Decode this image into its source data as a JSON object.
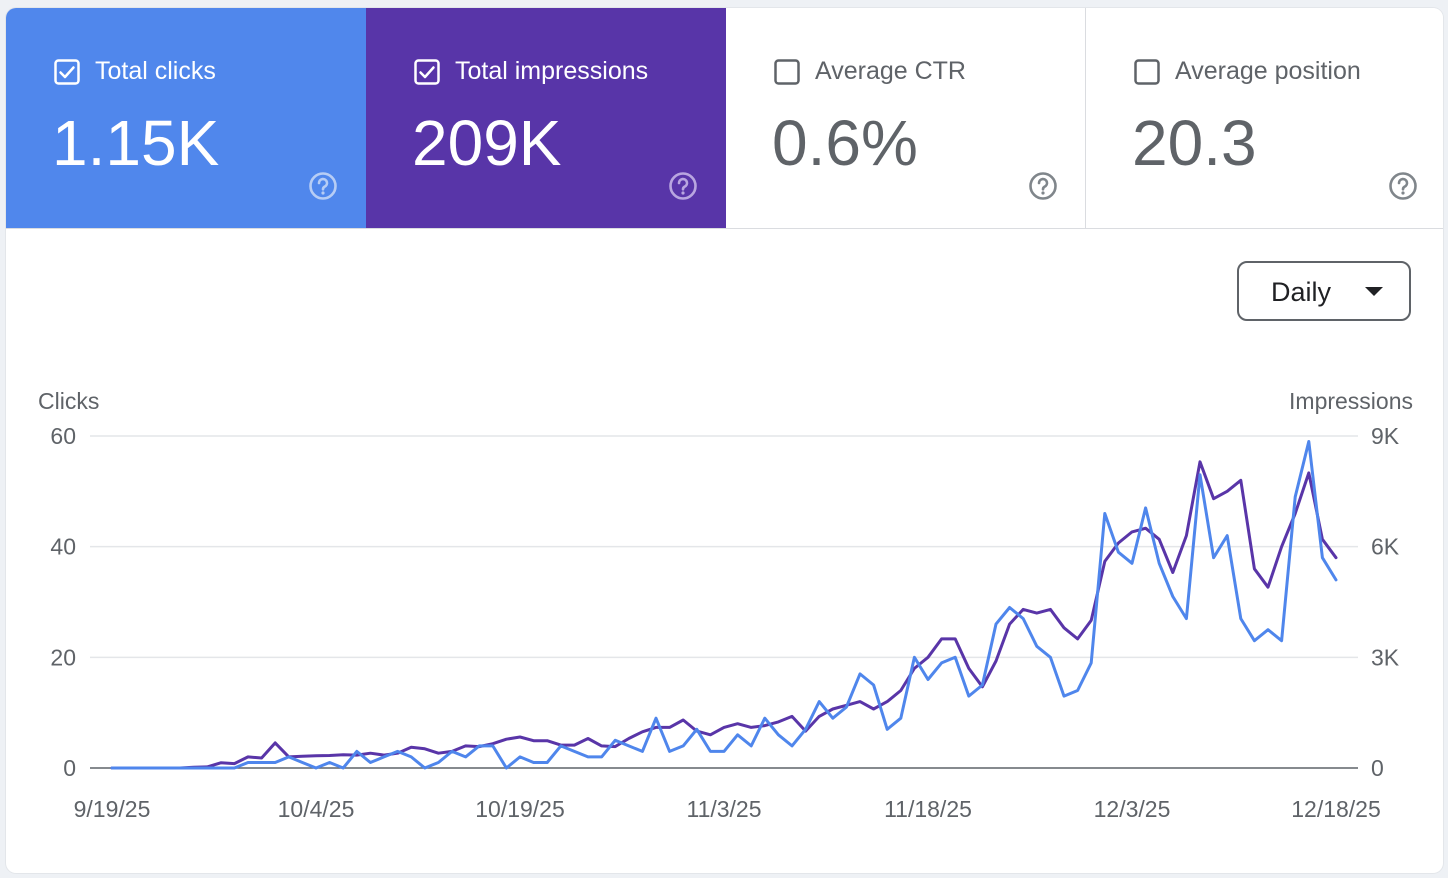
{
  "metrics": [
    {
      "label": "Total clicks",
      "value": "1.15K",
      "checked": true,
      "bg": "#5087ec"
    },
    {
      "label": "Total impressions",
      "value": "209K",
      "checked": true,
      "bg": "#5835a8"
    },
    {
      "label": "Average CTR",
      "value": "0.6%",
      "checked": false,
      "bg": "#ffffff"
    },
    {
      "label": "Average position",
      "value": "20.3",
      "checked": false,
      "bg": "#ffffff"
    }
  ],
  "granularity": {
    "selected": "Daily"
  },
  "chart_data": {
    "type": "line",
    "left_axis": {
      "label": "Clicks",
      "ticks": [
        0,
        20,
        40,
        60
      ],
      "range": [
        0,
        60
      ]
    },
    "right_axis": {
      "label": "Impressions",
      "ticks": [
        "0",
        "3K",
        "6K",
        "9K"
      ],
      "tick_values": [
        0,
        3000,
        6000,
        9000
      ],
      "range": [
        0,
        9000
      ]
    },
    "x_ticks": [
      "9/19/25",
      "10/4/25",
      "10/19/25",
      "11/3/25",
      "11/18/25",
      "12/3/25",
      "12/18/25"
    ],
    "x_range": [
      "9/19/25",
      "12/18/25"
    ],
    "grid": true,
    "legend": "none",
    "series": [
      {
        "name": "Clicks",
        "axis": "left",
        "color": "#4f86ec",
        "values": [
          0,
          0,
          0,
          0,
          0,
          0,
          0,
          0,
          0,
          0,
          1,
          1,
          1,
          2,
          1,
          0,
          1,
          0,
          3,
          1,
          2,
          3,
          2,
          0,
          1,
          3,
          2,
          4,
          4,
          0,
          2,
          1,
          1,
          4,
          3,
          2,
          2,
          5,
          4,
          3,
          9,
          3,
          4,
          7,
          3,
          3,
          6,
          4,
          9,
          6,
          4,
          7,
          12,
          9,
          11,
          17,
          15,
          7,
          9,
          20,
          16,
          19,
          20,
          13,
          15,
          26,
          29,
          27,
          22,
          20,
          13,
          14,
          19,
          46,
          39,
          37,
          47,
          37,
          31,
          27,
          53,
          38,
          42,
          27,
          23,
          25,
          23,
          49,
          59,
          38,
          34
        ]
      },
      {
        "name": "Impressions",
        "axis": "right",
        "color": "#5935a8",
        "values": [
          0,
          0,
          0,
          0,
          0,
          0,
          20,
          30,
          140,
          120,
          300,
          270,
          680,
          300,
          320,
          330,
          340,
          360,
          350,
          400,
          350,
          400,
          560,
          520,
          400,
          450,
          600,
          580,
          660,
          780,
          840,
          740,
          740,
          620,
          620,
          800,
          600,
          580,
          800,
          980,
          1100,
          1100,
          1300,
          1000,
          900,
          1100,
          1200,
          1100,
          1150,
          1250,
          1400,
          1000,
          1400,
          1600,
          1700,
          1800,
          1600,
          1800,
          2100,
          2700,
          3000,
          3500,
          3500,
          2700,
          2200,
          2900,
          3900,
          4300,
          4200,
          4300,
          3800,
          3500,
          4000,
          5600,
          6100,
          6400,
          6500,
          6200,
          5300,
          6300,
          8300,
          7300,
          7500,
          7800,
          5400,
          4900,
          6000,
          6900,
          8000,
          6200,
          5700
        ]
      }
    ]
  }
}
